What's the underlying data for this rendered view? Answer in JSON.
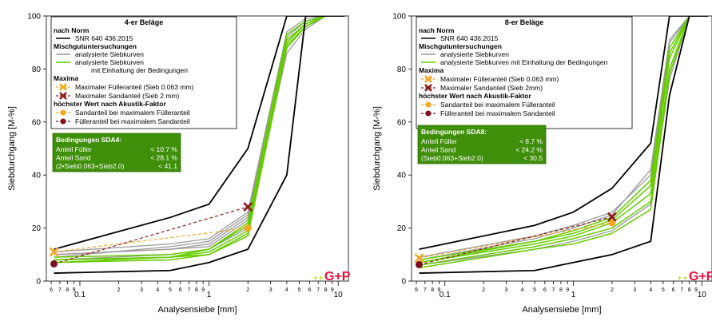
{
  "chart_data": [
    {
      "type": "line",
      "ylabel": "Siebdurchgang [M-%]",
      "xlabel": "Analysensiebe [mm]",
      "x_scale": "log",
      "xlim": [
        0.055,
        12
      ],
      "ylim": [
        0,
        100
      ],
      "y_ticks": [
        0,
        20,
        40,
        60,
        80,
        100
      ],
      "x_tick_labels": [
        {
          "x": 0.06,
          "label": "6"
        },
        {
          "x": 0.07,
          "label": "7"
        },
        {
          "x": 0.08,
          "label": "8"
        },
        {
          "x": 0.09,
          "label": "9"
        },
        {
          "x": 0.1,
          "label": "0.1"
        },
        {
          "x": 0.2,
          "label": "2"
        },
        {
          "x": 0.3,
          "label": "3"
        },
        {
          "x": 0.4,
          "label": "4"
        },
        {
          "x": 0.5,
          "label": "5"
        },
        {
          "x": 0.6,
          "label": "6"
        },
        {
          "x": 0.7,
          "label": "7"
        },
        {
          "x": 0.8,
          "label": "8"
        },
        {
          "x": 0.9,
          "label": "9"
        },
        {
          "x": 1,
          "label": "1"
        },
        {
          "x": 2,
          "label": "2"
        },
        {
          "x": 3,
          "label": "3"
        },
        {
          "x": 4,
          "label": "4"
        },
        {
          "x": 5,
          "label": "5"
        },
        {
          "x": 6,
          "label": "6"
        },
        {
          "x": 7,
          "label": "7"
        },
        {
          "x": 8,
          "label": "8"
        },
        {
          "x": 9,
          "label": "9"
        },
        {
          "x": 10,
          "label": "10"
        }
      ],
      "sieves": [
        0.063,
        0.5,
        1,
        2,
        4,
        5.6,
        8,
        11.2
      ],
      "norm_lower": [
        3,
        4,
        7,
        12,
        40,
        100,
        100,
        100
      ],
      "norm_upper": [
        12,
        24,
        29,
        50,
        100,
        100,
        100,
        100
      ],
      "series": [
        {
          "values": [
            7,
            8,
            10,
            17,
            88,
            96,
            100,
            100
          ],
          "conforming": true
        },
        {
          "values": [
            8,
            9,
            11,
            19,
            90,
            97,
            100,
            100
          ],
          "conforming": true
        },
        {
          "values": [
            9,
            10,
            12,
            21,
            91,
            97,
            100,
            100
          ],
          "conforming": true
        },
        {
          "values": [
            8,
            9,
            12,
            22,
            93,
            98,
            100,
            100
          ],
          "conforming": true
        },
        {
          "values": [
            7,
            9,
            10,
            18,
            89,
            96,
            100,
            100
          ],
          "conforming": true
        },
        {
          "values": [
            10,
            12,
            14,
            24,
            92,
            98,
            100,
            100
          ],
          "conforming": false
        },
        {
          "values": [
            11,
            14,
            16,
            26,
            94,
            99,
            100,
            100
          ],
          "conforming": false
        },
        {
          "values": [
            9,
            13,
            15,
            25,
            93,
            98,
            100,
            100
          ],
          "conforming": false
        },
        {
          "values": [
            10,
            12,
            13,
            23,
            90,
            97,
            100,
            100
          ],
          "conforming": false
        },
        {
          "values": [
            8,
            10,
            12,
            20,
            86,
            95,
            100,
            100
          ],
          "conforming": false
        }
      ],
      "max_filler_point": {
        "x": 0.063,
        "y": 11
      },
      "max_sand_point": {
        "x": 2,
        "y": 28
      },
      "sand_at_max_filler_point": {
        "x": 2,
        "y": 20
      },
      "filler_at_max_sand_point": {
        "x": 0.063,
        "y": 6.5
      }
    },
    {
      "type": "line",
      "ylabel": "Siebdurchgang [M-%]",
      "xlabel": "Analysensiebe [mm]",
      "x_scale": "log",
      "xlim": [
        0.055,
        12
      ],
      "ylim": [
        0,
        100
      ],
      "y_ticks": [
        0,
        20,
        40,
        60,
        80,
        100
      ],
      "x_tick_labels": [
        {
          "x": 0.06,
          "label": "6"
        },
        {
          "x": 0.07,
          "label": "7"
        },
        {
          "x": 0.08,
          "label": "8"
        },
        {
          "x": 0.09,
          "label": "9"
        },
        {
          "x": 0.1,
          "label": "0.1"
        },
        {
          "x": 0.2,
          "label": "2"
        },
        {
          "x": 0.3,
          "label": "3"
        },
        {
          "x": 0.4,
          "label": "4"
        },
        {
          "x": 0.5,
          "label": "5"
        },
        {
          "x": 0.6,
          "label": "6"
        },
        {
          "x": 0.7,
          "label": "7"
        },
        {
          "x": 0.8,
          "label": "8"
        },
        {
          "x": 0.9,
          "label": "9"
        },
        {
          "x": 1,
          "label": "1"
        },
        {
          "x": 2,
          "label": "2"
        },
        {
          "x": 3,
          "label": "3"
        },
        {
          "x": 4,
          "label": "4"
        },
        {
          "x": 5,
          "label": "5"
        },
        {
          "x": 6,
          "label": "6"
        },
        {
          "x": 7,
          "label": "7"
        },
        {
          "x": 8,
          "label": "8"
        },
        {
          "x": 9,
          "label": "9"
        },
        {
          "x": 10,
          "label": "10"
        }
      ],
      "sieves": [
        0.063,
        0.5,
        1,
        2,
        4,
        5.6,
        8,
        11.2
      ],
      "norm_lower": [
        3,
        4,
        7,
        10,
        15,
        70,
        100,
        100
      ],
      "norm_upper": [
        12,
        21,
        26,
        35,
        52,
        100,
        100,
        100
      ],
      "series": [
        {
          "values": [
            6,
            13,
            16,
            20,
            30,
            80,
            100,
            100
          ],
          "conforming": true
        },
        {
          "values": [
            7,
            14,
            17,
            22,
            33,
            84,
            100,
            100
          ],
          "conforming": true
        },
        {
          "values": [
            8,
            15,
            18,
            23,
            36,
            86,
            100,
            100
          ],
          "conforming": true
        },
        {
          "values": [
            5,
            12,
            14,
            18,
            27,
            78,
            100,
            100
          ],
          "conforming": true
        },
        {
          "values": [
            7,
            15,
            19,
            24,
            38,
            88,
            100,
            100
          ],
          "conforming": true
        },
        {
          "values": [
            9,
            17,
            21,
            26,
            40,
            90,
            100,
            100
          ],
          "conforming": false
        },
        {
          "values": [
            8,
            16,
            20,
            25,
            42,
            91,
            100,
            100
          ],
          "conforming": false
        },
        {
          "values": [
            6,
            12,
            15,
            19,
            29,
            76,
            100,
            100
          ],
          "conforming": false
        }
      ],
      "max_filler_point": {
        "x": 0.063,
        "y": 8.7
      },
      "max_sand_point": {
        "x": 2,
        "y": 24.2
      },
      "sand_at_max_filler_point": {
        "x": 2,
        "y": 22
      },
      "filler_at_max_sand_point": {
        "x": 0.063,
        "y": 6.2
      }
    }
  ],
  "panels": [
    {
      "legend": {
        "title": "4-er Beläge",
        "norm_heading": "nach Norm",
        "norm_item": "SNR 640 436:2015",
        "mix_heading": "Mischgutuntersuchungen",
        "mix_item_1": "analysierte Siebkurven",
        "mix_item_2": "analysierte Siebkurven",
        "mix_item_2b": "mit Einhaltung der Bedingungen",
        "maxima_heading": "Maxima",
        "maxima_item_1": "Maximaler Fülleranteil (Sieb 0.063 mm)",
        "maxima_item_2": "Maximaler Sandanteil (Sieb 2 mm)",
        "acoustic_heading": "höchster Wert nach Akustik-Faktor",
        "acoustic_item_1": "Sandanteil bei maximalem Fülleranteil",
        "acoustic_item_2": "Fülleranteil bei maximalem Sandanteil"
      },
      "conditions": {
        "title": "Bedingungen SDA4:",
        "rows": [
          {
            "label": "Anteil Füller",
            "value": "< 10.7 %"
          },
          {
            "label": "Anteil Sand",
            "value": "< 28.1 %"
          },
          {
            "label": "(2•Sieb0.063+Sieb2.0)",
            "value": "< 41.1"
          }
        ]
      },
      "logo": "G+P"
    },
    {
      "legend": {
        "title": "8-er Beläge",
        "norm_heading": "nach Norm",
        "norm_item": "SNR 640 436:2015",
        "mix_heading": "Mischgutuntersuchungen",
        "mix_item_1": "analysierte Siebkurven",
        "mix_item_2": "analysierte Siebkurven mit Einhaltung der Bedingungen",
        "mix_item_2b": "",
        "maxima_heading": "Maxima",
        "maxima_item_1": "Maximaler Fülleranteil (Sieb 0.063 mm)",
        "maxima_item_2": "Maximaler Sandanteil (Sieb 2mm)",
        "acoustic_heading": "höchster Wert nach Akustik-Faktor",
        "acoustic_item_1": "Sandanteil bei maximalem Fülleranteil",
        "acoustic_item_2": "Fülleranteil bei maximalem Sandanteil"
      },
      "conditions": {
        "title": "Bedingungen SDA8:",
        "rows": [
          {
            "label": "Anteil Füller",
            "value": "<   8.7 %"
          },
          {
            "label": "Anteil Sand",
            "value": "< 24.2 %"
          },
          {
            "label": "(Sieb0.063+Sieb2.0)",
            "value": "< 30.5"
          }
        ]
      },
      "logo": "G+P"
    }
  ],
  "colors": {
    "norm": "#000000",
    "analyzed": "#9a9a9a",
    "conforming": "#66cc00",
    "max_filler": "#f5a623",
    "max_sand": "#8b1a1a",
    "acoustic_sand": "#f5a623",
    "acoustic_filler": "#7a1020",
    "cond_box": "#3f8f0a",
    "logo_red": "#e8103a",
    "logo_green": "#b4e000"
  }
}
